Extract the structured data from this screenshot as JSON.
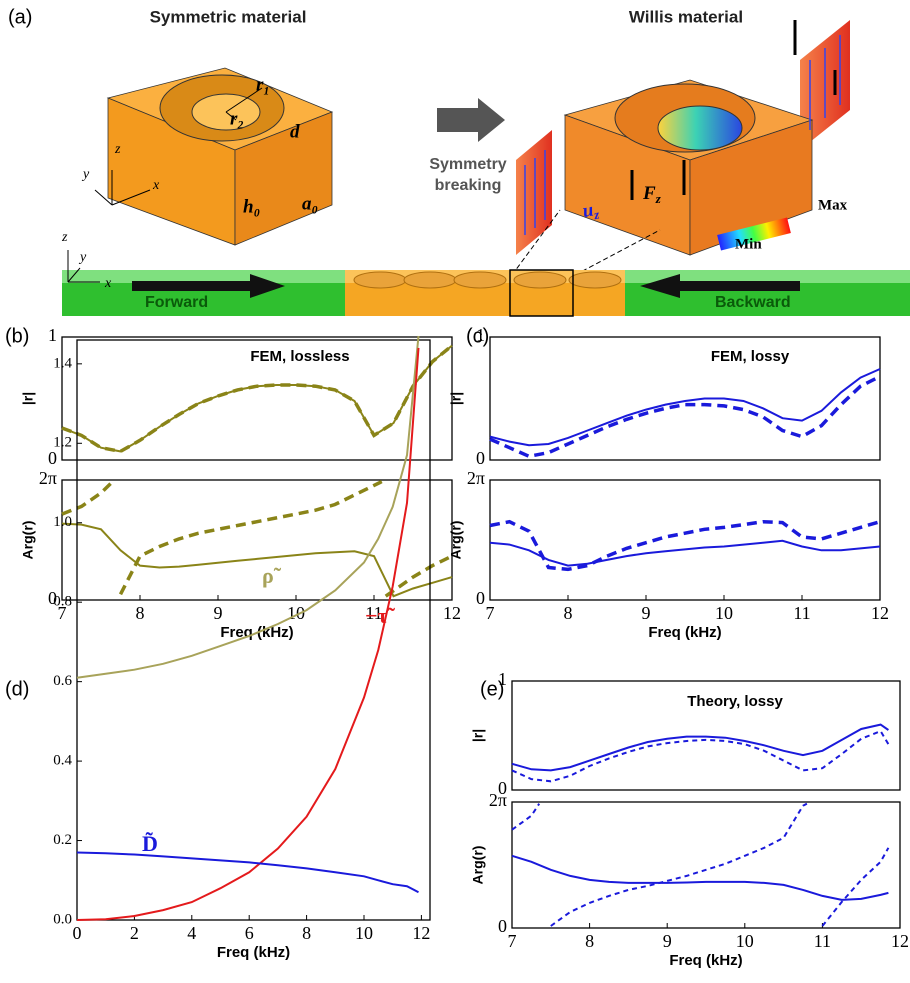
{
  "diagram": {
    "panel": "(a)",
    "left_title": "Symmetric material",
    "right_title": "Willis material",
    "arrow_label": [
      "Symmetry",
      "breaking"
    ],
    "forward": "Forward",
    "backward": "Backward",
    "max": "Max",
    "min": "Min",
    "axes": {
      "box": [
        "z",
        "y",
        "x"
      ],
      "beam": [
        "z",
        "y",
        "x"
      ]
    },
    "symbols": {
      "r1": "r₁",
      "r2": "r₂",
      "d": "d",
      "h0": "h₀",
      "a0": "a₀"
    },
    "force": {
      "symbol": "F",
      "sub": "z"
    },
    "displacement": {
      "symbol": "u",
      "sub": "z"
    }
  },
  "chart_data": [
    {
      "type": "line",
      "panel": "(b)",
      "title": "FEM, lossless",
      "ylabel": "|r|",
      "xlim": [
        7,
        12
      ],
      "ylim": [
        0,
        1
      ],
      "yticks": [
        0,
        1
      ],
      "x": [
        7,
        7.25,
        7.5,
        7.75,
        8,
        8.25,
        8.5,
        8.75,
        9,
        9.25,
        9.5,
        9.75,
        10,
        10.25,
        10.5,
        10.75,
        11,
        11.25,
        11.5,
        11.75,
        12
      ],
      "series": [
        {
          "color": "#8a8418",
          "line_style": "solid",
          "values": [
            0.26,
            0.2,
            0.1,
            0.07,
            0.16,
            0.27,
            0.37,
            0.46,
            0.52,
            0.57,
            0.6,
            0.61,
            0.61,
            0.6,
            0.57,
            0.48,
            0.2,
            0.3,
            0.6,
            0.8,
            0.93
          ]
        },
        {
          "color": "#8a8418",
          "line_style": "dashed",
          "values": [
            0.26,
            0.2,
            0.1,
            0.07,
            0.16,
            0.27,
            0.37,
            0.46,
            0.52,
            0.57,
            0.6,
            0.61,
            0.61,
            0.6,
            0.57,
            0.48,
            0.2,
            0.3,
            0.6,
            0.8,
            0.93
          ]
        }
      ]
    },
    {
      "type": "line",
      "ylabel": "Arg(r)",
      "xlabel": "Freq (kHz)",
      "xlim": [
        7,
        12
      ],
      "ylim": [
        0,
        6.283
      ],
      "xticks": [
        7,
        8,
        9,
        10,
        11,
        12
      ],
      "yticks": [
        0,
        {
          "value": 6.283,
          "label": "2π"
        }
      ],
      "x": [
        7,
        7.25,
        7.5,
        7.75,
        8,
        8.25,
        8.5,
        8.75,
        9,
        9.25,
        9.5,
        9.75,
        10,
        10.25,
        10.5,
        10.75,
        11,
        11.25,
        11.5,
        11.75,
        12
      ],
      "series": [
        {
          "color": "#8a8418",
          "line_style": "solid",
          "values": [
            4.0,
            3.95,
            3.7,
            2.6,
            1.8,
            1.7,
            1.75,
            1.85,
            1.95,
            2.05,
            2.15,
            2.25,
            2.35,
            2.45,
            2.5,
            2.55,
            2.3,
            0.2,
            0.6,
            0.9,
            1.2
          ]
        },
        {
          "color": "#8a8418",
          "line_style": "dashed",
          "x": [
            7,
            7.25,
            7.5,
            7.65,
            null,
            7.75,
            8,
            8.25,
            8.5,
            8.75,
            9,
            9.25,
            9.5,
            9.75,
            10,
            10.25,
            10.5,
            10.75,
            11,
            11.1,
            null,
            11.15,
            11.5,
            11.75,
            12
          ],
          "values": [
            4.5,
            4.9,
            5.6,
            6.2,
            null,
            0.3,
            2.3,
            2.8,
            3.2,
            3.5,
            3.7,
            3.9,
            4.1,
            4.3,
            4.5,
            4.7,
            5.0,
            5.5,
            6.0,
            6.2,
            null,
            0.2,
            1.2,
            1.8,
            2.3
          ]
        }
      ]
    },
    {
      "type": "line",
      "panel": "(c)",
      "title": "FEM, lossy",
      "ylabel": "|r|",
      "xlim": [
        7,
        12
      ],
      "ylim": [
        0,
        1
      ],
      "yticks": [
        0,
        1
      ],
      "x": [
        7,
        7.25,
        7.5,
        7.75,
        8,
        8.25,
        8.5,
        8.75,
        9,
        9.25,
        9.5,
        9.75,
        10,
        10.25,
        10.5,
        10.75,
        11,
        11.25,
        11.5,
        11.75,
        12
      ],
      "series": [
        {
          "color": "#1a1adb",
          "line_style": "solid",
          "values": [
            0.19,
            0.15,
            0.12,
            0.13,
            0.18,
            0.24,
            0.3,
            0.36,
            0.41,
            0.45,
            0.48,
            0.5,
            0.5,
            0.48,
            0.42,
            0.34,
            0.32,
            0.4,
            0.55,
            0.67,
            0.74
          ]
        },
        {
          "color": "#1a1adb",
          "line_style": "dashed",
          "values": [
            0.17,
            0.1,
            0.03,
            0.06,
            0.13,
            0.2,
            0.27,
            0.33,
            0.38,
            0.42,
            0.45,
            0.45,
            0.44,
            0.41,
            0.35,
            0.24,
            0.19,
            0.28,
            0.45,
            0.6,
            0.68
          ]
        }
      ]
    },
    {
      "type": "line",
      "ylabel": "Arg(r)",
      "xlabel": "Freq (kHz)",
      "xlim": [
        7,
        12
      ],
      "ylim": [
        0,
        6.283
      ],
      "xticks": [
        7,
        8,
        9,
        10,
        11,
        12
      ],
      "yticks": [
        0,
        {
          "value": 6.283,
          "label": "2π"
        }
      ],
      "x": [
        7,
        7.25,
        7.5,
        7.75,
        8,
        8.25,
        8.5,
        8.75,
        9,
        9.25,
        9.5,
        9.75,
        10,
        10.25,
        10.5,
        10.75,
        11,
        11.25,
        11.5,
        11.75,
        12
      ],
      "series": [
        {
          "color": "#1a1adb",
          "line_style": "solid",
          "values": [
            3.0,
            2.9,
            2.6,
            2.1,
            1.8,
            1.9,
            2.1,
            2.3,
            2.45,
            2.55,
            2.65,
            2.75,
            2.8,
            2.9,
            3.0,
            3.1,
            2.8,
            2.6,
            2.6,
            2.7,
            2.8
          ]
        },
        {
          "color": "#1a1adb",
          "line_style": "dashed",
          "values": [
            3.9,
            4.1,
            3.6,
            1.7,
            1.6,
            1.8,
            2.3,
            2.7,
            3.0,
            3.3,
            3.5,
            3.7,
            3.8,
            3.95,
            4.1,
            4.05,
            3.3,
            3.2,
            3.5,
            3.8,
            4.1
          ]
        }
      ]
    },
    {
      "type": "line",
      "panel": "(d)",
      "xlabel": "Freq (kHz)",
      "xlim": [
        0,
        12.3
      ],
      "ylim": [
        0,
        1.46
      ],
      "xticks": [
        0,
        2,
        4,
        6,
        8,
        10,
        12
      ],
      "yticks": [
        {
          "value": 0,
          "label": "0.0"
        },
        0.2,
        0.4,
        0.6,
        0.8,
        {
          "value": 1,
          "label": "1.0"
        },
        1.2,
        1.4
      ],
      "x": [
        0,
        1,
        2,
        3,
        4,
        5,
        6,
        7,
        8,
        9,
        10,
        10.5,
        11,
        11.5,
        11.9
      ],
      "series": [
        {
          "name": "ρ̃",
          "color": "#a8a35a",
          "line_style": "solid",
          "values": [
            0.61,
            0.62,
            0.63,
            0.645,
            0.665,
            0.69,
            0.715,
            0.745,
            0.78,
            0.83,
            0.9,
            0.96,
            1.04,
            1.17,
            1.47
          ]
        },
        {
          "name": "−τ̃",
          "color": "#e41a1c",
          "line_style": "solid",
          "values": [
            0,
            0.002,
            0.01,
            0.025,
            0.045,
            0.08,
            0.12,
            0.18,
            0.26,
            0.38,
            0.56,
            0.68,
            0.84,
            1.05,
            1.44
          ]
        },
        {
          "name": "D̃",
          "color": "#1a1adb",
          "line_style": "solid",
          "values": [
            0.17,
            0.168,
            0.165,
            0.16,
            0.155,
            0.15,
            0.145,
            0.138,
            0.13,
            0.12,
            0.11,
            0.1,
            0.09,
            0.085,
            0.07
          ]
        }
      ]
    },
    {
      "type": "line",
      "panel": "(e)",
      "title": "Theory, lossy",
      "ylabel": "|r|",
      "xlim": [
        7,
        12
      ],
      "ylim": [
        0,
        1
      ],
      "yticks": [
        0,
        1
      ],
      "x": [
        7,
        7.25,
        7.5,
        7.75,
        8,
        8.25,
        8.5,
        8.75,
        9,
        9.25,
        9.5,
        9.75,
        10,
        10.25,
        10.5,
        10.75,
        11,
        11.25,
        11.5,
        11.75,
        11.85
      ],
      "series": [
        {
          "color": "#1a1adb",
          "line_style": "solid",
          "values": [
            0.24,
            0.19,
            0.18,
            0.21,
            0.27,
            0.33,
            0.39,
            0.44,
            0.47,
            0.49,
            0.49,
            0.48,
            0.45,
            0.41,
            0.36,
            0.32,
            0.36,
            0.46,
            0.56,
            0.6,
            0.55
          ]
        },
        {
          "color": "#1a1adb",
          "line_style": "dashed",
          "values": [
            0.18,
            0.1,
            0.08,
            0.13,
            0.22,
            0.29,
            0.35,
            0.4,
            0.43,
            0.45,
            0.46,
            0.45,
            0.42,
            0.36,
            0.27,
            0.18,
            0.2,
            0.33,
            0.47,
            0.54,
            0.42
          ]
        }
      ]
    },
    {
      "type": "line",
      "ylabel": "Arg(r)",
      "xlabel": "Freq (kHz)",
      "xlim": [
        7,
        12
      ],
      "ylim": [
        0,
        6.283
      ],
      "xticks": [
        7,
        8,
        9,
        10,
        11,
        12
      ],
      "yticks": [
        0,
        {
          "value": 6.283,
          "label": "2π"
        }
      ],
      "x": [
        7,
        7.25,
        7.5,
        7.75,
        8,
        8.25,
        8.5,
        8.75,
        9,
        9.25,
        9.5,
        9.75,
        10,
        10.25,
        10.5,
        10.75,
        11,
        11.25,
        11.5,
        11.75,
        11.85
      ],
      "series": [
        {
          "color": "#1a1adb",
          "line_style": "solid",
          "values": [
            3.6,
            3.3,
            2.9,
            2.6,
            2.4,
            2.3,
            2.25,
            2.25,
            2.25,
            2.27,
            2.3,
            2.3,
            2.3,
            2.25,
            2.15,
            1.9,
            1.6,
            1.4,
            1.45,
            1.65,
            1.75
          ]
        },
        {
          "color": "#1a1adb",
          "line_style": "dashed",
          "x": [
            7,
            7.25,
            7.35,
            null,
            7.5,
            7.75,
            8,
            8.25,
            8.5,
            8.75,
            9,
            9.25,
            9.5,
            9.75,
            10,
            10.25,
            10.5,
            10.75,
            10.8,
            null,
            11,
            11.25,
            11.5,
            11.75,
            11.85
          ],
          "values": [
            4.9,
            5.6,
            6.2,
            null,
            0.1,
            0.8,
            1.25,
            1.6,
            1.9,
            2.1,
            2.35,
            2.6,
            2.9,
            3.2,
            3.6,
            4.0,
            4.5,
            6.1,
            6.2,
            null,
            0.1,
            1.3,
            2.4,
            3.3,
            4.0
          ]
        }
      ]
    }
  ]
}
